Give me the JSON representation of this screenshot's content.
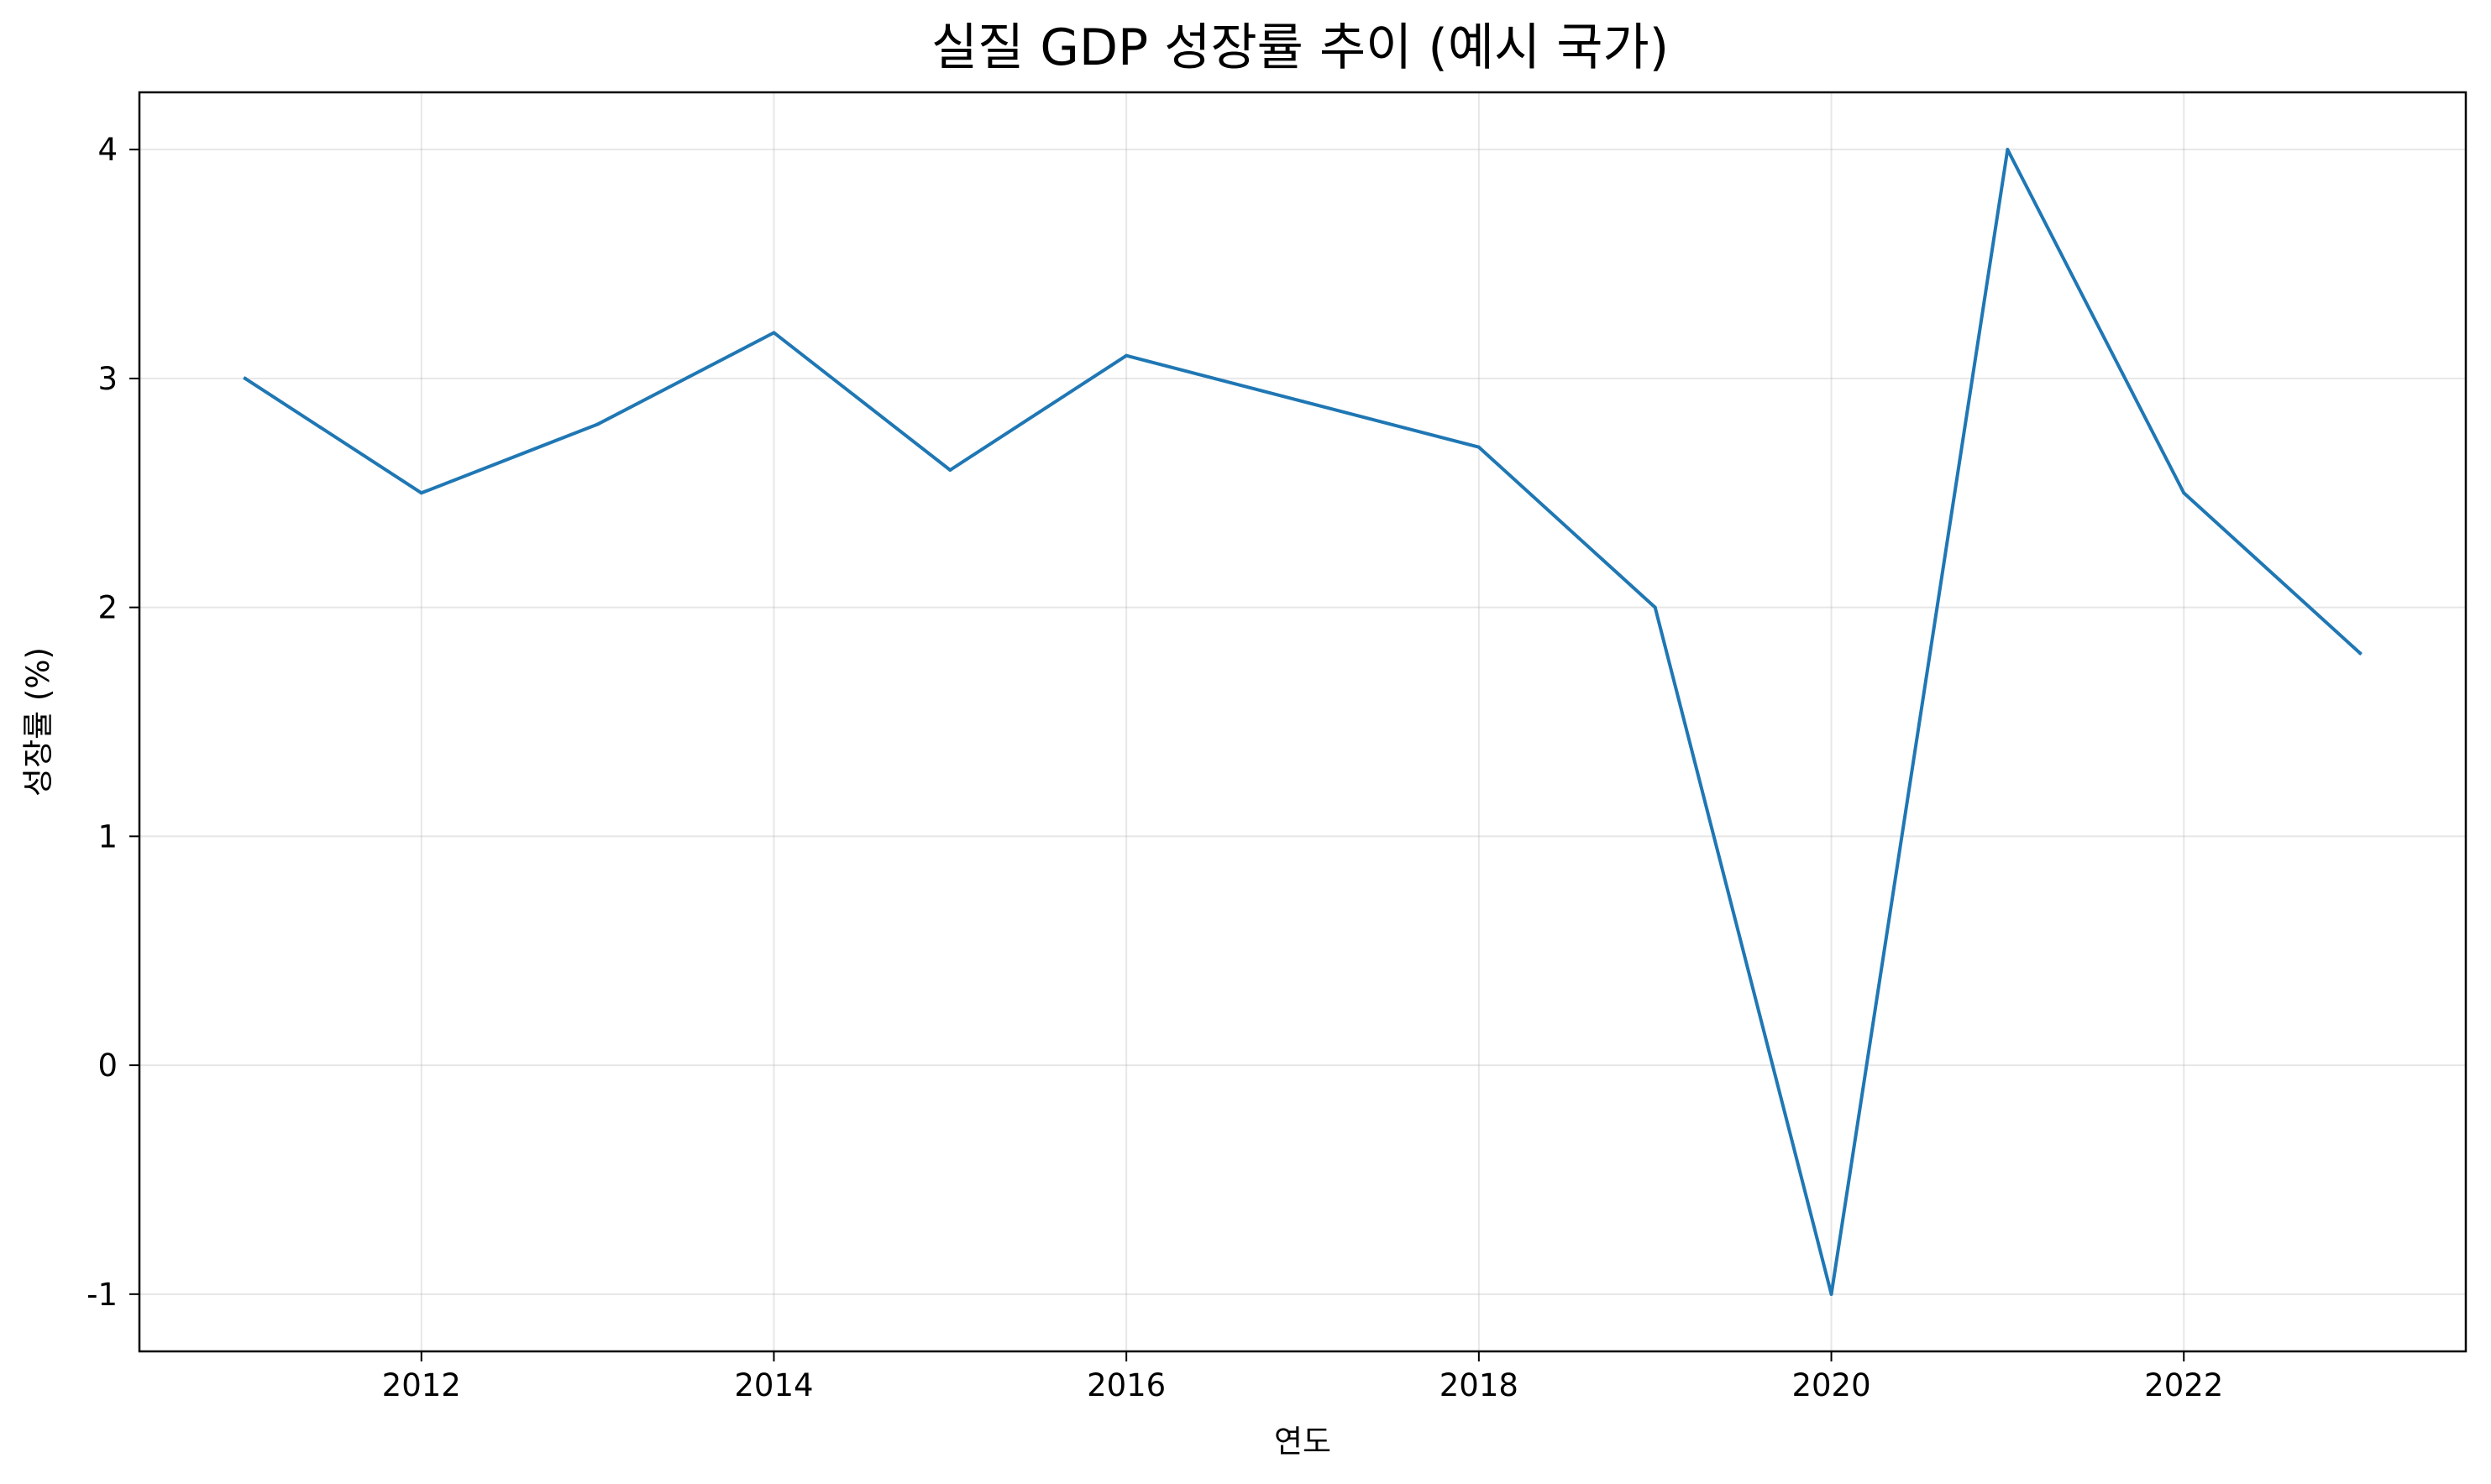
{
  "chart_data": {
    "type": "line",
    "title": "실질 GDP 성장률 추이 (예시 국가)",
    "xlabel": "연도",
    "ylabel": "성장률 (%)",
    "x": [
      2011,
      2012,
      2013,
      2014,
      2015,
      2016,
      2017,
      2018,
      2019,
      2020,
      2021,
      2022,
      2023
    ],
    "series": [
      {
        "values": [
          3.0,
          2.5,
          2.8,
          3.2,
          2.6,
          3.1,
          2.9,
          2.7,
          2.0,
          -1.0,
          4.0,
          2.5,
          1.8
        ],
        "color": "#1f77b4"
      }
    ],
    "xticks": [
      "2012",
      "2014",
      "2016",
      "2018",
      "2020",
      "2022"
    ],
    "yticks": [
      "-1",
      "0",
      "1",
      "2",
      "3",
      "4"
    ],
    "xlim": [
      2010.4,
      2023.6
    ],
    "ylim": [
      -1.25,
      4.25
    ],
    "grid": true
  }
}
